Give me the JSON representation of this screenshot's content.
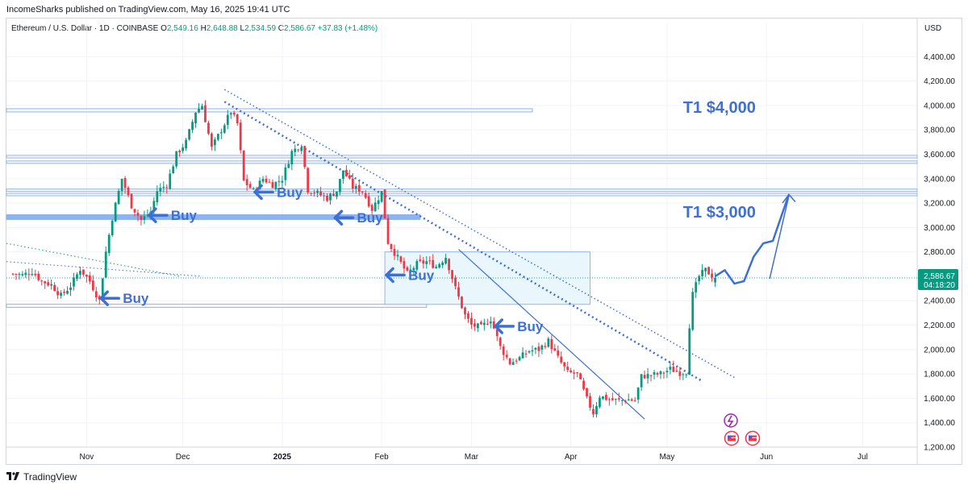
{
  "header": {
    "published": "IncomeSharks published on TradingView.com, May 16, 2025 19:41 UTC"
  },
  "legend": {
    "symbol": "Ethereum / U.S. Dollar · 1D · COINBASE",
    "o_label": "O",
    "o": "2,549.16",
    "h_label": "H",
    "h": "2,648.88",
    "l_label": "L",
    "l": "2,534.59",
    "c_label": "C",
    "c": "2,586.67",
    "change": "+37.83 (+1.48%)"
  },
  "axis": {
    "currency": "USD"
  },
  "price_tag": {
    "price": "2,586.67",
    "countdown": "04:18:20"
  },
  "footer": {
    "brand": "TradingView"
  },
  "colors": {
    "up": "#089981",
    "down": "#f23645",
    "annotation": "#3d6fd6",
    "zone_fill": "#e9f6fb",
    "zone_stroke": "#90b4ee",
    "price_line": "#26a69a"
  },
  "chart_data": {
    "type": "candlestick",
    "title": "Ethereum / U.S. Dollar · 1D · COINBASE",
    "ylim": [
      1200,
      4600
    ],
    "y_ticks": [
      1200,
      1400,
      1600,
      1800,
      2000,
      2200,
      2400,
      2600,
      2800,
      3000,
      3200,
      3400,
      3600,
      3800,
      4000,
      4200,
      4400
    ],
    "x_ticks": [
      {
        "label": "Nov",
        "day": "2024-11-01"
      },
      {
        "label": "Dec",
        "day": "2024-12-01"
      },
      {
        "label": "2025",
        "day": "2025-01-01",
        "bold": true
      },
      {
        "label": "Feb",
        "day": "2025-02-01"
      },
      {
        "label": "Mar",
        "day": "2025-03-01"
      },
      {
        "label": "Apr",
        "day": "2025-04-01"
      },
      {
        "label": "May",
        "day": "2025-05-01"
      },
      {
        "label": "Jun",
        "day": "2025-06-01"
      },
      {
        "label": "Jul",
        "day": "2025-07-01"
      }
    ],
    "x_range": [
      "2024-10-07",
      "2025-07-18"
    ],
    "path": [
      [
        "2024-10-09",
        2620
      ],
      [
        "2024-10-12",
        2610
      ],
      [
        "2024-10-15",
        2640
      ],
      [
        "2024-10-18",
        2560
      ],
      [
        "2024-10-21",
        2530
      ],
      [
        "2024-10-24",
        2440
      ],
      [
        "2024-10-27",
        2520
      ],
      [
        "2024-10-30",
        2660
      ],
      [
        "2024-11-02",
        2560
      ],
      [
        "2024-11-05",
        2400
      ],
      [
        "2024-11-07",
        2800
      ],
      [
        "2024-11-09",
        3080
      ],
      [
        "2024-11-12",
        3400
      ],
      [
        "2024-11-15",
        3180
      ],
      [
        "2024-11-18",
        3060
      ],
      [
        "2024-11-21",
        3130
      ],
      [
        "2024-11-23",
        3300
      ],
      [
        "2024-11-26",
        3350
      ],
      [
        "2024-11-29",
        3600
      ],
      [
        "2024-12-02",
        3700
      ],
      [
        "2024-12-05",
        3950
      ],
      [
        "2024-12-07",
        4000
      ],
      [
        "2024-12-10",
        3650
      ],
      [
        "2024-12-13",
        3800
      ],
      [
        "2024-12-16",
        3950
      ],
      [
        "2024-12-18",
        3850
      ],
      [
        "2024-12-20",
        3380
      ],
      [
        "2024-12-23",
        3300
      ],
      [
        "2024-12-26",
        3400
      ],
      [
        "2024-12-29",
        3350
      ],
      [
        "2025-01-01",
        3400
      ],
      [
        "2025-01-04",
        3620
      ],
      [
        "2025-01-07",
        3680
      ],
      [
        "2025-01-09",
        3310
      ],
      [
        "2025-01-12",
        3280
      ],
      [
        "2025-01-15",
        3240
      ],
      [
        "2025-01-18",
        3300
      ],
      [
        "2025-01-20",
        3470
      ],
      [
        "2025-01-23",
        3330
      ],
      [
        "2025-01-26",
        3300
      ],
      [
        "2025-01-29",
        3150
      ],
      [
        "2025-02-01",
        3290
      ],
      [
        "2025-02-03",
        2880
      ],
      [
        "2025-02-06",
        2750
      ],
      [
        "2025-02-09",
        2620
      ],
      [
        "2025-02-12",
        2700
      ],
      [
        "2025-02-15",
        2720
      ],
      [
        "2025-02-18",
        2680
      ],
      [
        "2025-02-21",
        2760
      ],
      [
        "2025-02-24",
        2500
      ],
      [
        "2025-02-27",
        2280
      ],
      [
        "2025-03-01",
        2200
      ],
      [
        "2025-03-04",
        2180
      ],
      [
        "2025-03-07",
        2250
      ],
      [
        "2025-03-10",
        2020
      ],
      [
        "2025-03-13",
        1890
      ],
      [
        "2025-03-16",
        1930
      ],
      [
        "2025-03-19",
        1990
      ],
      [
        "2025-03-22",
        2000
      ],
      [
        "2025-03-25",
        2070
      ],
      [
        "2025-03-28",
        1930
      ],
      [
        "2025-03-31",
        1810
      ],
      [
        "2025-04-03",
        1800
      ],
      [
        "2025-04-06",
        1590
      ],
      [
        "2025-04-08",
        1480
      ],
      [
        "2025-04-10",
        1620
      ],
      [
        "2025-04-13",
        1590
      ],
      [
        "2025-04-16",
        1580
      ],
      [
        "2025-04-19",
        1590
      ],
      [
        "2025-04-21",
        1580
      ],
      [
        "2025-04-23",
        1780
      ],
      [
        "2025-04-26",
        1790
      ],
      [
        "2025-04-29",
        1800
      ],
      [
        "2025-05-02",
        1840
      ],
      [
        "2025-05-05",
        1810
      ],
      [
        "2025-05-07",
        1820
      ],
      [
        "2025-05-08",
        2200
      ],
      [
        "2025-05-09",
        2450
      ],
      [
        "2025-05-11",
        2600
      ],
      [
        "2025-05-13",
        2650
      ],
      [
        "2025-05-16",
        2586.67
      ]
    ],
    "annotations": {
      "targets": [
        {
          "label": "T1 $4,000",
          "date": "2025-05-06",
          "price": 3940
        },
        {
          "label": "T1 $3,000",
          "date": "2025-05-06",
          "price": 3080
        }
      ],
      "buy_labels": [
        {
          "label": "Buy",
          "date": "2024-11-06",
          "price": 2420
        },
        {
          "label": "Buy",
          "date": "2024-11-21",
          "price": 3100
        },
        {
          "label": "Buy",
          "date": "2024-12-24",
          "price": 3290
        },
        {
          "label": "Buy",
          "date": "2025-01-18",
          "price": 3080
        },
        {
          "label": "Buy",
          "date": "2025-02-03",
          "price": 2610
        },
        {
          "label": "Buy",
          "date": "2025-03-09",
          "price": 2190
        }
      ]
    }
  }
}
